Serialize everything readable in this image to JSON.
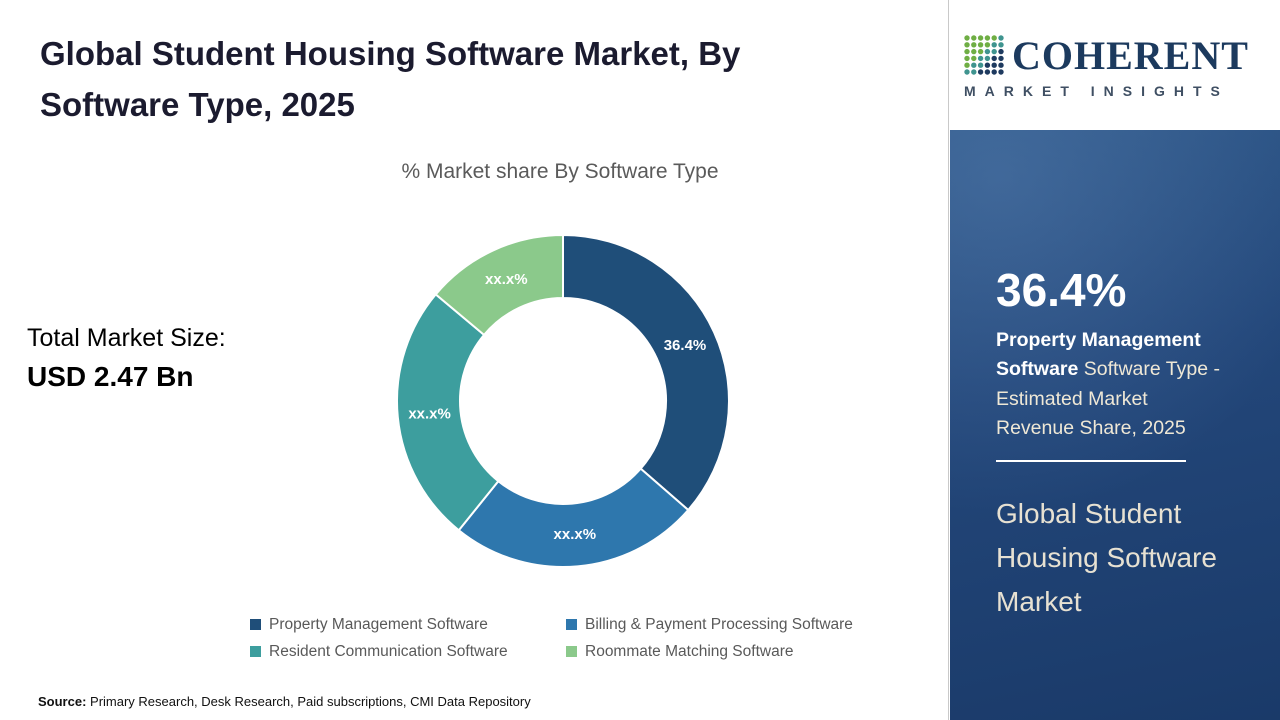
{
  "header": {
    "title": "Global Student Housing Software Market, By Software Type, 2025"
  },
  "chart_data": {
    "type": "pie",
    "title": "% Market share By Software Type",
    "categories": [
      "Property Management Software",
      "Billing & Payment Processing Software",
      "Resident Communication Software",
      "Roommate Matching Software"
    ],
    "values": [
      36.4,
      24.4,
      25.3,
      13.9
    ],
    "slice_labels": [
      "36.4%",
      "xx.x%",
      "xx.x%",
      "xx.x%"
    ],
    "colors": [
      "#1f4e79",
      "#2e77ad",
      "#3d9e9e",
      "#8bc98b"
    ],
    "legend_position": "bottom",
    "donut": true
  },
  "left_panel": {
    "total_label": "Total Market Size:",
    "total_value": "USD 2.47 Bn"
  },
  "sidebar": {
    "stat_value": "36.4%",
    "stat_desc_bold": "Property Management Software",
    "stat_desc_rest": " Software Type - Estimated Market Revenue Share, 2025",
    "market_name": "Global Student Housing Software Market"
  },
  "logo": {
    "text": "COHERENT",
    "subtext": "MARKET INSIGHTS"
  },
  "footer": {
    "source_label": "Source:",
    "source_text": " Primary Research, Desk Research, Paid subscriptions, CMI Data Repository"
  }
}
